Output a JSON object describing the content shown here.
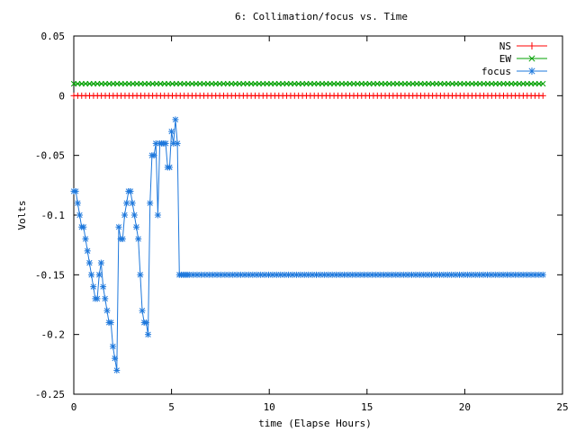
{
  "chart_data": {
    "type": "line",
    "title": "6: Collimation/focus vs. Time",
    "xlabel": "time (Elapse Hours)",
    "ylabel": "Volts",
    "xlim": [
      0,
      25
    ],
    "ylim": [
      -0.25,
      0.05
    ],
    "x_ticks": [
      0,
      5,
      10,
      15,
      20,
      25
    ],
    "x_tick_labels": [
      "0",
      "5",
      "10",
      "15",
      "20",
      "25"
    ],
    "y_ticks": [
      0.05,
      0,
      -0.05,
      -0.1,
      -0.15,
      -0.2,
      -0.25
    ],
    "y_tick_labels": [
      "0.05",
      "0",
      "-0.05",
      "-0.1",
      "-0.15",
      "-0.2",
      "-0.25"
    ],
    "grid": false,
    "legend_position": "top-right",
    "series": [
      {
        "name": "NS",
        "color": "#ff0000",
        "marker": "plus",
        "x_range": [
          0,
          24
        ],
        "n_points": 120,
        "constant": 0
      },
      {
        "name": "EW",
        "color": "#00a000",
        "marker": "cross",
        "x_range": [
          0,
          24
        ],
        "n_points": 120,
        "constant": 0.01
      },
      {
        "name": "focus",
        "color": "#1e78dc",
        "marker": "star",
        "x": [
          0,
          0.1,
          0.2,
          0.3,
          0.4,
          0.5,
          0.6,
          0.7,
          0.8,
          0.9,
          1.0,
          1.1,
          1.2,
          1.3,
          1.4,
          1.5,
          1.6,
          1.7,
          1.8,
          1.9,
          2.0,
          2.1,
          2.2,
          2.3,
          2.4,
          2.5,
          2.6,
          2.7,
          2.8,
          2.9,
          3.0,
          3.1,
          3.2,
          3.3,
          3.4,
          3.5,
          3.6,
          3.7,
          3.8,
          3.9,
          4.0,
          4.1,
          4.2,
          4.3,
          4.4,
          4.5,
          4.6,
          4.7,
          4.8,
          4.9,
          5.0,
          5.1,
          5.2,
          5.3,
          5.4,
          5.5,
          5.6,
          5.7,
          5.8,
          5.9
        ],
        "y": [
          -0.08,
          -0.08,
          -0.09,
          -0.1,
          -0.11,
          -0.11,
          -0.12,
          -0.13,
          -0.14,
          -0.15,
          -0.16,
          -0.17,
          -0.17,
          -0.15,
          -0.14,
          -0.16,
          -0.17,
          -0.18,
          -0.19,
          -0.19,
          -0.21,
          -0.22,
          -0.23,
          -0.11,
          -0.12,
          -0.12,
          -0.1,
          -0.09,
          -0.08,
          -0.08,
          -0.09,
          -0.1,
          -0.11,
          -0.12,
          -0.15,
          -0.18,
          -0.19,
          -0.19,
          -0.2,
          -0.09,
          -0.05,
          -0.05,
          -0.04,
          -0.1,
          -0.04,
          -0.04,
          -0.04,
          -0.04,
          -0.06,
          -0.06,
          -0.03,
          -0.04,
          -0.02,
          -0.04,
          -0.15,
          -0.15,
          -0.15,
          -0.15,
          -0.15,
          -0.15
        ],
        "tail": {
          "x_range": [
            5.9,
            24
          ],
          "n_points": 90,
          "constant": -0.15
        }
      }
    ]
  }
}
